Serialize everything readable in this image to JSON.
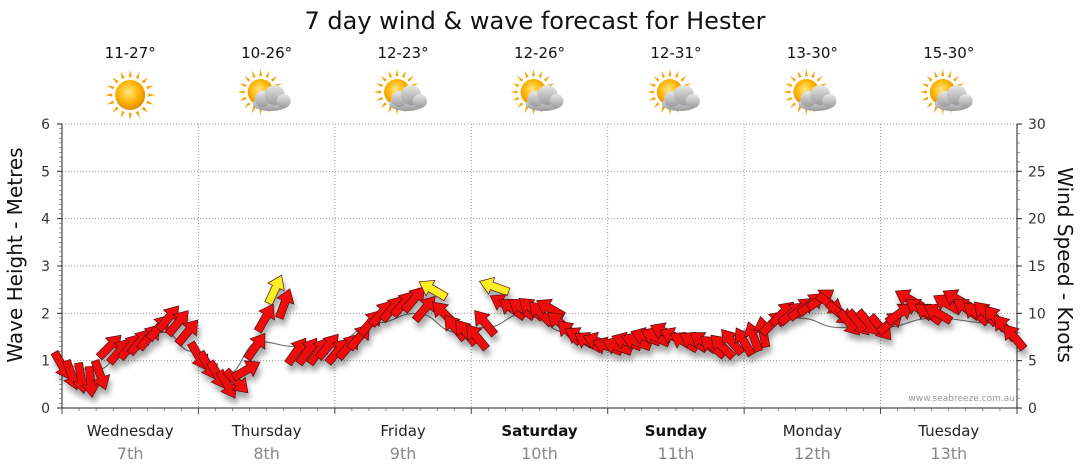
{
  "chart_data": {
    "type": "line",
    "title": "7 day wind & wave forecast for Hester",
    "ylabel_left": "Wave Height - Metres",
    "ylabel_right": "Wind Speed - Knots",
    "ylim_left": [
      0,
      6
    ],
    "ylim_right": [
      0,
      30
    ],
    "yticks_left": [
      "0",
      "1",
      "2",
      "3",
      "4",
      "5",
      "6"
    ],
    "yticks_right": [
      "0",
      "5",
      "10",
      "15",
      "20",
      "25",
      "30"
    ],
    "grid": true,
    "credit": "www.seabreeze.com.au",
    "days": [
      {
        "name": "Wednesday",
        "date": "7th",
        "bold": false,
        "temp": "11-27°",
        "icon": "sun-icon"
      },
      {
        "name": "Thursday",
        "date": "8th",
        "bold": false,
        "temp": "10-26°",
        "icon": "sun-cloud-icon"
      },
      {
        "name": "Friday",
        "date": "9th",
        "bold": false,
        "temp": "12-23°",
        "icon": "sun-cloud-icon"
      },
      {
        "name": "Saturday",
        "date": "10th",
        "bold": true,
        "temp": "12-26°",
        "icon": "sun-cloud-icon"
      },
      {
        "name": "Sunday",
        "date": "11th",
        "bold": true,
        "temp": "12-31°",
        "icon": "sun-cloud-icon"
      },
      {
        "name": "Monday",
        "date": "12th",
        "bold": false,
        "temp": "13-30°",
        "icon": "sun-cloud-icon"
      },
      {
        "name": "Tuesday",
        "date": "13th",
        "bold": false,
        "temp": "15-30°",
        "icon": "sun-cloud-icon"
      }
    ],
    "wind_colors": {
      "moderate": "#ee1111",
      "light": "#ffee22",
      "outline": "#551111"
    },
    "wave_color": "#777777",
    "wind_series": [
      {
        "day": 0.0,
        "knots": 4.5,
        "dir": 150
      },
      {
        "day": 0.07,
        "knots": 3.5,
        "dir": 160
      },
      {
        "day": 0.14,
        "knots": 3.2,
        "dir": 170
      },
      {
        "day": 0.21,
        "knots": 2.8,
        "dir": 175
      },
      {
        "day": 0.28,
        "knots": 3.5,
        "dir": 160
      },
      {
        "day": 0.35,
        "knots": 6.5,
        "dir": 45
      },
      {
        "day": 0.42,
        "knots": 6.0,
        "dir": 40
      },
      {
        "day": 0.5,
        "knots": 6.5,
        "dir": 40
      },
      {
        "day": 0.57,
        "knots": 7.0,
        "dir": 40
      },
      {
        "day": 0.64,
        "knots": 7.5,
        "dir": 40
      },
      {
        "day": 0.71,
        "knots": 8.5,
        "dir": 40
      },
      {
        "day": 0.78,
        "knots": 9.5,
        "dir": 40
      },
      {
        "day": 0.85,
        "knots": 9.0,
        "dir": 40
      },
      {
        "day": 0.92,
        "knots": 8.0,
        "dir": 40
      },
      {
        "day": 1.0,
        "knots": 5.5,
        "dir": 150
      },
      {
        "day": 1.07,
        "knots": 4.5,
        "dir": 150
      },
      {
        "day": 1.14,
        "knots": 3.5,
        "dir": 150
      },
      {
        "day": 1.21,
        "knots": 2.5,
        "dir": 150
      },
      {
        "day": 1.28,
        "knots": 2.8,
        "dir": 135
      },
      {
        "day": 1.35,
        "knots": 4.0,
        "dir": 60
      },
      {
        "day": 1.42,
        "knots": 6.5,
        "dir": 35
      },
      {
        "day": 1.49,
        "knots": 9.5,
        "dir": 30
      },
      {
        "day": 1.56,
        "knots": 12.5,
        "dir": 25
      },
      {
        "day": 1.63,
        "knots": 11.0,
        "dir": 20
      },
      {
        "day": 1.72,
        "knots": 6.0,
        "dir": 35
      },
      {
        "day": 1.8,
        "knots": 6.0,
        "dir": 35
      },
      {
        "day": 1.88,
        "knots": 6.0,
        "dir": 35
      },
      {
        "day": 1.95,
        "knots": 6.5,
        "dir": 40
      },
      {
        "day": 2.02,
        "knots": 6.0,
        "dir": 40
      },
      {
        "day": 2.1,
        "knots": 6.5,
        "dir": 40
      },
      {
        "day": 2.18,
        "knots": 7.5,
        "dir": 40
      },
      {
        "day": 2.26,
        "knots": 9.0,
        "dir": 40
      },
      {
        "day": 2.34,
        "knots": 10.0,
        "dir": 40
      },
      {
        "day": 2.42,
        "knots": 10.5,
        "dir": 40
      },
      {
        "day": 2.5,
        "knots": 11.0,
        "dir": 40
      },
      {
        "day": 2.58,
        "knots": 11.5,
        "dir": 40
      },
      {
        "day": 2.66,
        "knots": 10.5,
        "dir": 40
      },
      {
        "day": 2.72,
        "knots": 12.5,
        "dir": 300
      },
      {
        "day": 2.8,
        "knots": 10.0,
        "dir": 315
      },
      {
        "day": 2.88,
        "knots": 8.5,
        "dir": 320
      },
      {
        "day": 2.96,
        "knots": 8.0,
        "dir": 320
      },
      {
        "day": 3.04,
        "knots": 7.5,
        "dir": 320
      },
      {
        "day": 3.1,
        "knots": 9.0,
        "dir": 320
      },
      {
        "day": 3.17,
        "knots": 12.8,
        "dir": 290
      },
      {
        "day": 3.24,
        "knots": 11.0,
        "dir": 300
      },
      {
        "day": 3.3,
        "knots": 10.5,
        "dir": 305
      },
      {
        "day": 3.37,
        "knots": 10.5,
        "dir": 305
      },
      {
        "day": 3.44,
        "knots": 10.5,
        "dir": 310
      },
      {
        "day": 3.51,
        "knots": 10.0,
        "dir": 315
      },
      {
        "day": 3.58,
        "knots": 10.5,
        "dir": 300
      },
      {
        "day": 3.65,
        "knots": 9.0,
        "dir": 310
      },
      {
        "day": 3.72,
        "knots": 8.0,
        "dir": 315
      },
      {
        "day": 3.79,
        "knots": 7.5,
        "dir": 300
      },
      {
        "day": 3.86,
        "knots": 7.0,
        "dir": 300
      },
      {
        "day": 3.93,
        "knots": 7.0,
        "dir": 290
      },
      {
        "day": 4.0,
        "knots": 6.5,
        "dir": 290
      },
      {
        "day": 4.07,
        "knots": 6.5,
        "dir": 290
      },
      {
        "day": 4.14,
        "knots": 7.0,
        "dir": 290
      },
      {
        "day": 4.21,
        "knots": 7.0,
        "dir": 290
      },
      {
        "day": 4.28,
        "knots": 7.5,
        "dir": 290
      },
      {
        "day": 4.35,
        "knots": 7.5,
        "dir": 295
      },
      {
        "day": 4.42,
        "knots": 8.0,
        "dir": 295
      },
      {
        "day": 4.49,
        "knots": 7.5,
        "dir": 295
      },
      {
        "day": 4.56,
        "knots": 7.0,
        "dir": 300
      },
      {
        "day": 4.63,
        "knots": 7.0,
        "dir": 300
      },
      {
        "day": 4.7,
        "knots": 7.0,
        "dir": 305
      },
      {
        "day": 4.77,
        "knots": 6.5,
        "dir": 310
      },
      {
        "day": 4.84,
        "knots": 6.5,
        "dir": 315
      },
      {
        "day": 4.91,
        "knots": 7.0,
        "dir": 320
      },
      {
        "day": 5.0,
        "knots": 7.0,
        "dir": 330
      },
      {
        "day": 5.07,
        "knots": 7.5,
        "dir": 340
      },
      {
        "day": 5.14,
        "knots": 8.0,
        "dir": 350
      },
      {
        "day": 5.21,
        "knots": 9.0,
        "dir": 45
      },
      {
        "day": 5.28,
        "knots": 10.0,
        "dir": 45
      },
      {
        "day": 5.35,
        "knots": 10.0,
        "dir": 50
      },
      {
        "day": 5.42,
        "knots": 10.5,
        "dir": 50
      },
      {
        "day": 5.49,
        "knots": 11.0,
        "dir": 50
      },
      {
        "day": 5.56,
        "knots": 11.5,
        "dir": 55
      },
      {
        "day": 5.63,
        "knots": 11.0,
        "dir": 125
      },
      {
        "day": 5.7,
        "knots": 10.0,
        "dir": 130
      },
      {
        "day": 5.77,
        "knots": 9.0,
        "dir": 140
      },
      {
        "day": 5.84,
        "knots": 9.0,
        "dir": 140
      },
      {
        "day": 5.91,
        "knots": 9.0,
        "dir": 140
      },
      {
        "day": 6.0,
        "knots": 8.5,
        "dir": 140
      },
      {
        "day": 6.07,
        "knots": 9.0,
        "dir": 50
      },
      {
        "day": 6.14,
        "knots": 10.0,
        "dir": 55
      },
      {
        "day": 6.21,
        "knots": 11.5,
        "dir": 300
      },
      {
        "day": 6.28,
        "knots": 10.5,
        "dir": 305
      },
      {
        "day": 6.35,
        "knots": 10.0,
        "dir": 305
      },
      {
        "day": 6.42,
        "knots": 10.0,
        "dir": 300
      },
      {
        "day": 6.49,
        "knots": 11.0,
        "dir": 300
      },
      {
        "day": 6.56,
        "knots": 11.5,
        "dir": 300
      },
      {
        "day": 6.63,
        "knots": 10.5,
        "dir": 305
      },
      {
        "day": 6.7,
        "knots": 10.0,
        "dir": 310
      },
      {
        "day": 6.77,
        "knots": 10.0,
        "dir": 315
      },
      {
        "day": 6.84,
        "knots": 9.5,
        "dir": 320
      },
      {
        "day": 6.91,
        "knots": 8.5,
        "dir": 320
      },
      {
        "day": 6.98,
        "knots": 7.5,
        "dir": 320
      }
    ],
    "wave_series": [
      {
        "day": 0.0,
        "m": 0.9
      },
      {
        "day": 0.25,
        "m": 0.8
      },
      {
        "day": 0.5,
        "m": 1.3
      },
      {
        "day": 0.75,
        "m": 1.6
      },
      {
        "day": 0.95,
        "m": 1.2
      },
      {
        "day": 1.2,
        "m": 0.7
      },
      {
        "day": 1.45,
        "m": 1.4
      },
      {
        "day": 1.7,
        "m": 1.3
      },
      {
        "day": 2.0,
        "m": 1.4
      },
      {
        "day": 2.3,
        "m": 1.8
      },
      {
        "day": 2.6,
        "m": 2.0
      },
      {
        "day": 2.9,
        "m": 1.6
      },
      {
        "day": 3.1,
        "m": 1.7
      },
      {
        "day": 3.4,
        "m": 2.0
      },
      {
        "day": 3.7,
        "m": 1.6
      },
      {
        "day": 4.0,
        "m": 1.4
      },
      {
        "day": 4.4,
        "m": 1.5
      },
      {
        "day": 4.8,
        "m": 1.4
      },
      {
        "day": 5.1,
        "m": 1.7
      },
      {
        "day": 5.4,
        "m": 1.9
      },
      {
        "day": 5.7,
        "m": 1.7
      },
      {
        "day": 6.0,
        "m": 1.7
      },
      {
        "day": 6.4,
        "m": 1.9
      },
      {
        "day": 6.8,
        "m": 1.8
      },
      {
        "day": 7.0,
        "m": 1.6
      }
    ]
  }
}
